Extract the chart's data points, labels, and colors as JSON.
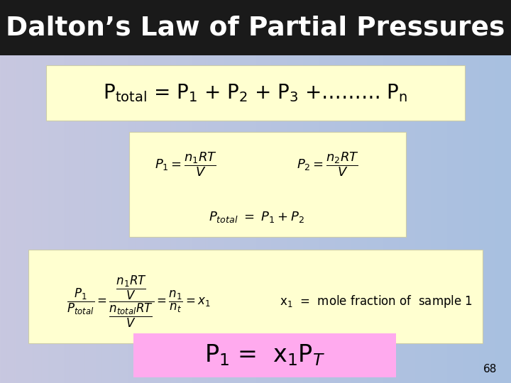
{
  "title": "Dalton’s Law of Partial Pressures",
  "title_bg": "#1a1a1a",
  "title_color": "#ffffff",
  "bg_left": "#c8c8e0",
  "bg_right": "#a8c0e0",
  "box_yellow": "#ffffd0",
  "box_pink": "#ffaaee",
  "slide_number": "68",
  "figsize": [
    7.2,
    5.4
  ],
  "dpi": 100
}
